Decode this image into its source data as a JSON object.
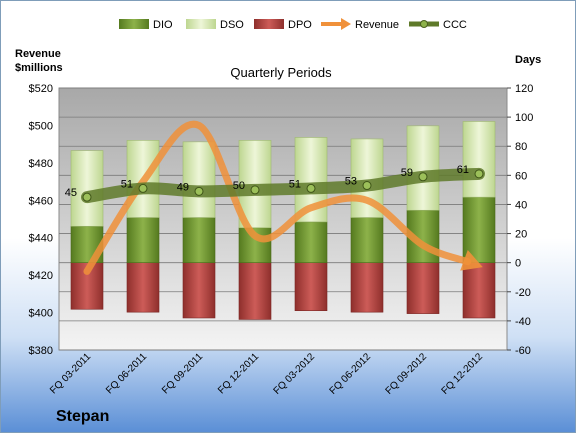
{
  "chart_data": {
    "type": "bar",
    "title": "Quarterly Periods",
    "company": "Stepan",
    "categories": [
      "FQ 03-2011",
      "FQ 06-2011",
      "FQ 09-2011",
      "FQ 12-2011",
      "FQ 03-2012",
      "FQ 06-2012",
      "FQ 09-2012",
      "FQ 12-2012"
    ],
    "y_left_label_line1": "Revenue",
    "y_left_label_line2": "$millions",
    "y_right_label": "Days",
    "y_left_range": [
      380,
      520
    ],
    "y_right_range": [
      -60,
      120
    ],
    "y_left_ticks": [
      "$380",
      "$400",
      "$420",
      "$440",
      "$460",
      "$480",
      "$500",
      "$520"
    ],
    "y_right_ticks": [
      "-60",
      "-40",
      "-20",
      "0",
      "20",
      "40",
      "60",
      "80",
      "100",
      "120"
    ],
    "legend": [
      "DIO",
      "DSO",
      "DPO",
      "Revenue",
      "CCC"
    ],
    "legend_position": "top",
    "series": [
      {
        "name": "DIO",
        "axis": "right",
        "color": "#6f9a2e",
        "values": [
          25,
          31,
          31,
          24,
          28,
          31,
          36,
          45
        ]
      },
      {
        "name": "DSO",
        "axis": "right",
        "color": "#d7e8b0",
        "values": [
          52,
          53,
          52,
          60,
          58,
          54,
          58,
          52
        ]
      },
      {
        "name": "DPO",
        "axis": "right",
        "color": "#c0504d",
        "values": [
          -32,
          -34,
          -38,
          -39,
          -33,
          -34,
          -35,
          -38
        ]
      },
      {
        "name": "Revenue",
        "axis": "left",
        "color": "#f0913a",
        "values": [
          422,
          470,
          500,
          441,
          456,
          460,
          436,
          425
        ]
      },
      {
        "name": "CCC",
        "axis": "right",
        "color": "#5f7a2a",
        "values": [
          45,
          51,
          49,
          50,
          51,
          53,
          59,
          61
        ],
        "labels": [
          "45",
          "51",
          "49",
          "50",
          "51",
          "53",
          "59",
          "61"
        ]
      }
    ],
    "grid": true
  }
}
